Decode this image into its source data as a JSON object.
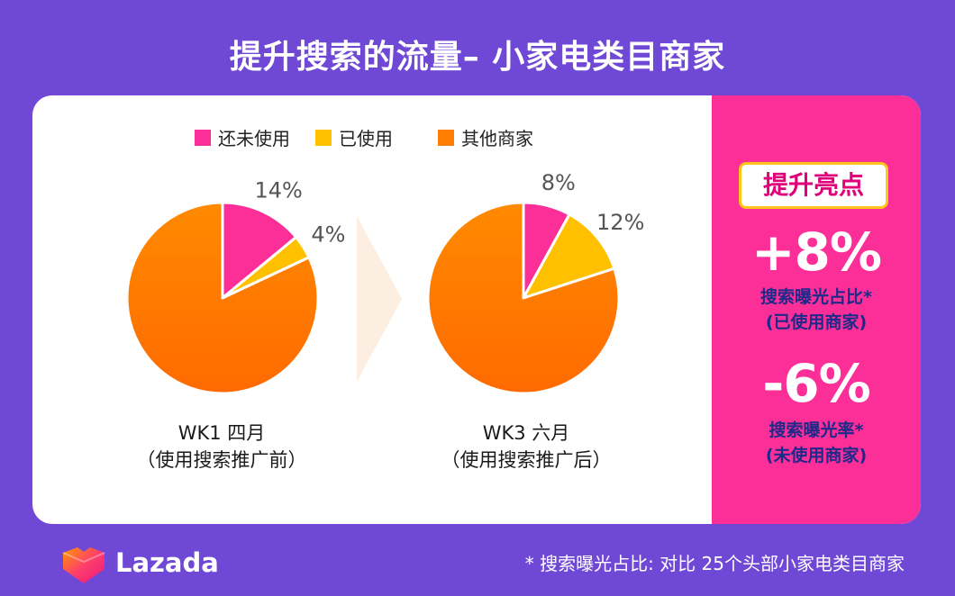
{
  "title": "提升搜索的流量– 小家电类目商家",
  "chart_data": {
    "type": "pie",
    "legend": [
      {
        "name": "还未使用",
        "color": "#fb2f97"
      },
      {
        "name": "已使用",
        "color": "#ffc000"
      },
      {
        "name": "其他商家",
        "color": "#ff7d00"
      }
    ],
    "legend_position": "top",
    "charts": [
      {
        "caption_line1": "WK1 四月",
        "caption_line2": "（使用搜索推广前）",
        "slices": [
          {
            "name": "还未使用",
            "value": 14,
            "label": "14%"
          },
          {
            "name": "已使用",
            "value": 4,
            "label": "4%"
          },
          {
            "name": "其他商家",
            "value": 82,
            "label": ""
          }
        ]
      },
      {
        "caption_line1": "WK3 六月",
        "caption_line2": "（使用搜索推广后）",
        "slices": [
          {
            "name": "还未使用",
            "value": 8,
            "label": "8%"
          },
          {
            "name": "已使用",
            "value": 12,
            "label": "12%"
          },
          {
            "name": "其他商家",
            "value": 80,
            "label": ""
          }
        ]
      }
    ]
  },
  "highlights": {
    "heading": "提升亮点",
    "items": [
      {
        "value": "+8%",
        "label_line1": "搜索曝光占比*",
        "label_line2": "(已使用商家)"
      },
      {
        "value": "-6%",
        "label_line1": "搜索曝光率*",
        "label_line2": "(未使用商家)"
      }
    ]
  },
  "footnote": "* 搜索曝光占比: 对比 25个头部小家电类目商家",
  "brand": {
    "name": "Lazada"
  }
}
